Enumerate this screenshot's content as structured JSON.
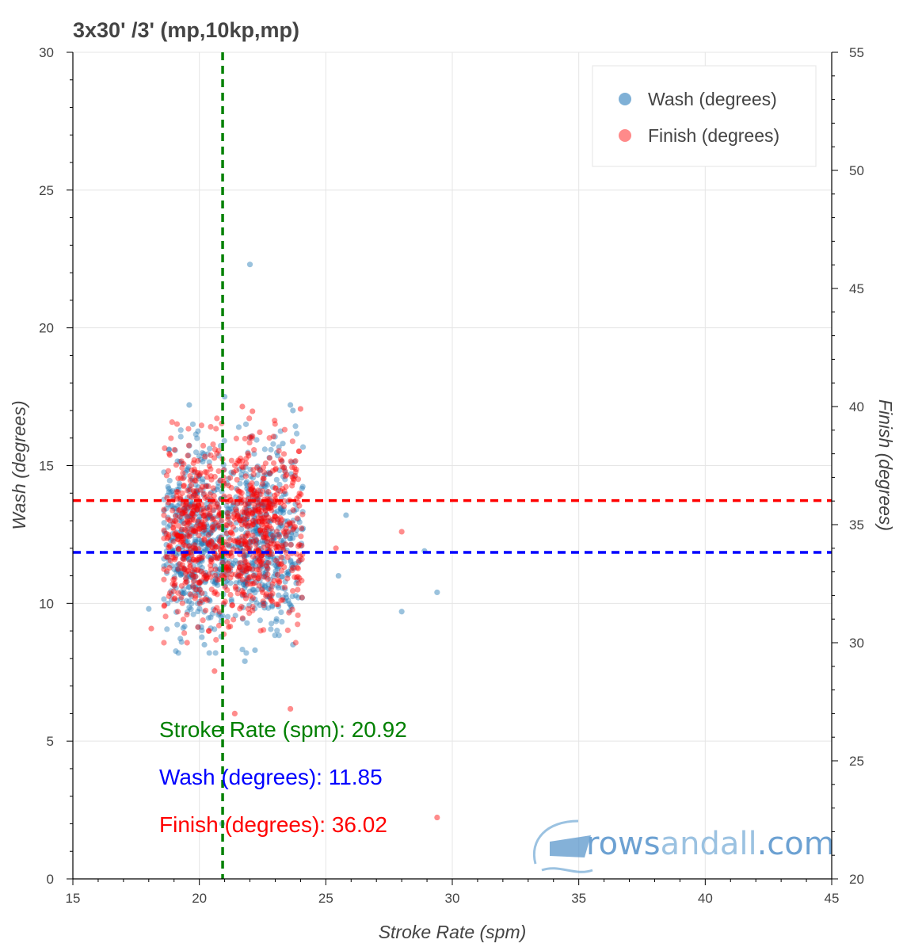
{
  "chart_data": {
    "type": "scatter",
    "title": "3x30' /3' (mp,10kp,mp)",
    "xlabel": "Stroke Rate (spm)",
    "ylabel": "Wash (degrees)",
    "y2label": "Finish (degrees)",
    "xlim": [
      15,
      45
    ],
    "ylim": [
      0,
      30
    ],
    "y2lim": [
      20,
      55
    ],
    "xticks": [
      "15",
      "20",
      "25",
      "30",
      "35",
      "40",
      "45"
    ],
    "yticks": [
      "0",
      "5",
      "10",
      "15",
      "20",
      "25",
      "30"
    ],
    "y2ticks": [
      "20",
      "25",
      "30",
      "35",
      "40",
      "45",
      "50",
      "55"
    ],
    "grid": true,
    "legend": {
      "placement": "top-right",
      "entries": [
        {
          "label": "Wash (degrees)",
          "color": "#7fb0d6"
        },
        {
          "label": "Finish (degrees)",
          "color": "#ff8a8a"
        }
      ]
    },
    "series": [
      {
        "name": "Wash (degrees)",
        "axis": "left",
        "color": "#1f77b4",
        "cluster": {
          "x_range": [
            18.6,
            24.1
          ],
          "y_range": [
            8.2,
            16.5
          ],
          "count": 900
        },
        "points": [
          [
            22.0,
            22.3
          ],
          [
            19.6,
            17.2
          ],
          [
            21.0,
            17.5
          ],
          [
            23.6,
            17.2
          ],
          [
            23.7,
            17.0
          ],
          [
            23.3,
            15.8
          ],
          [
            25.8,
            13.2
          ],
          [
            25.5,
            11.0
          ],
          [
            28.0,
            9.7
          ],
          [
            28.9,
            11.9
          ],
          [
            29.4,
            10.4
          ],
          [
            18.0,
            9.8
          ],
          [
            22.2,
            8.3
          ],
          [
            21.8,
            7.9
          ],
          [
            20.2,
            8.5
          ],
          [
            23.7,
            8.5
          ],
          [
            20.9,
            2.0
          ]
        ]
      },
      {
        "name": "Finish (degrees)",
        "axis": "right",
        "color": "#ff0000",
        "cluster": {
          "x_range": [
            18.6,
            24.1
          ],
          "y_range": [
            30.0,
            39.5
          ],
          "count": 900
        },
        "points": [
          [
            28.0,
            34.7
          ],
          [
            25.4,
            34.0
          ],
          [
            24.0,
            39.9
          ],
          [
            18.1,
            30.6
          ],
          [
            20.6,
            28.8
          ],
          [
            21.4,
            27.0
          ],
          [
            23.6,
            27.2
          ],
          [
            29.4,
            22.6
          ],
          [
            21.7,
            40.0
          ],
          [
            22.1,
            39.8
          ]
        ]
      }
    ],
    "reference_lines": [
      {
        "orientation": "vertical",
        "axis": "x",
        "value": 20.92,
        "color": "#008000"
      },
      {
        "orientation": "horizontal",
        "axis": "left",
        "value": 11.85,
        "color": "#0000ff"
      },
      {
        "orientation": "horizontal",
        "axis": "right",
        "value": 36.02,
        "color": "#ff0000"
      }
    ],
    "annotations": [
      {
        "text": "Stroke Rate (spm): 20.92",
        "color": "#008000"
      },
      {
        "text": "Wash (degrees): 11.85",
        "color": "#0000ff"
      },
      {
        "text": "Finish (degrees): 36.02",
        "color": "#ff0000"
      }
    ]
  },
  "watermark": {
    "text_part1": "rows",
    "text_part2": "andall",
    "text_part3": ".com"
  }
}
